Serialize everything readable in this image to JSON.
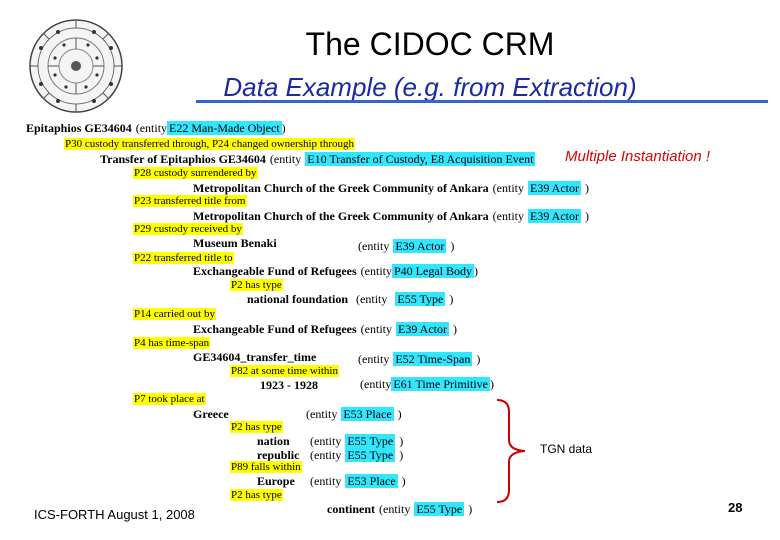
{
  "header": {
    "title": "The CIDOC CRM",
    "subtitle": "Data Example (e.g. from Extraction)"
  },
  "root": {
    "label": "Epitaphios GE34604",
    "prefix": "(entity",
    "class": "E22 Man-Made Object",
    "suffix": ")"
  },
  "transfer_header": {
    "properties": "P30 custody transferred through, P24 changed ownership through",
    "label": "Transfer of Epitaphios GE34604",
    "prefix": "(entity",
    "class": "E10 Transfer of Custody,  E8 Acquisition Event"
  },
  "multiple_instantiation": "Multiple Instantiation !",
  "rows": [
    {
      "prop": "P28 custody surrendered by",
      "label": "Metropolitan Church of the Greek Community of Ankara",
      "prefix": "(entity",
      "class": "E39 Actor",
      "suffix": ")"
    },
    {
      "prop": "P23 transferred title from",
      "label": "Metropolitan Church of the Greek Community of Ankara",
      "prefix": "(entity",
      "class": "E39 Actor",
      "suffix": ")"
    },
    {
      "prop": "P29 custody received by",
      "label": "Museum Benaki",
      "prefix": "(entity",
      "class": "E39 Actor",
      "suffix": ")"
    },
    {
      "prop": "P22 transferred title to",
      "label": "Exchangeable Fund of Refugees",
      "prefix": "(entity",
      "class": "P40 Legal Body",
      "suffix": ")"
    },
    {
      "prop": "P2 has type",
      "label": "national foundation",
      "prefix": "(entity",
      "class": "E55 Type",
      "suffix": ")"
    },
    {
      "prop": "P14 carried out by",
      "label": "Exchangeable Fund of Refugees",
      "prefix": "(entity",
      "class": "E39 Actor",
      "suffix": ")"
    },
    {
      "prop": "P4 has time-span",
      "label": "GE34604_transfer_time",
      "prefix": "(entity",
      "class": "E52 Time-Span",
      "suffix": ")"
    },
    {
      "prop": "P82 at some time within",
      "label": "1923 - 1928",
      "prefix": "(entity",
      "class": "E61 Time Primitive",
      "suffix": ")"
    },
    {
      "prop": "P7 took place at",
      "label": "Greece",
      "prefix": "(entity",
      "class": "E53 Place",
      "suffix": ")"
    },
    {
      "prop": "P2 has type",
      "label": "nation",
      "prefix": "(entity",
      "class": "E55 Type",
      "suffix": ")"
    },
    {
      "prop": "",
      "label": "republic",
      "prefix": "(entity",
      "class": "E55 Type",
      "suffix": ")"
    },
    {
      "prop": "P89 falls within",
      "label": "Europe",
      "prefix": "(entity",
      "class": "E53 Place",
      "suffix": ")"
    },
    {
      "prop": "P2 has type",
      "label": "continent",
      "prefix": "(entity",
      "class": "E55 Type",
      "suffix": ")"
    }
  ],
  "tgn_label": "TGN data",
  "footer": {
    "left": "ICS-FORTH  August 1, 2008",
    "page": "28"
  },
  "colors": {
    "highlight_class": "#33e6ff",
    "highlight_property": "#ffff00",
    "title_accent": "#1a2aa0",
    "warning": "#e00000",
    "brace": "#cc0000"
  }
}
